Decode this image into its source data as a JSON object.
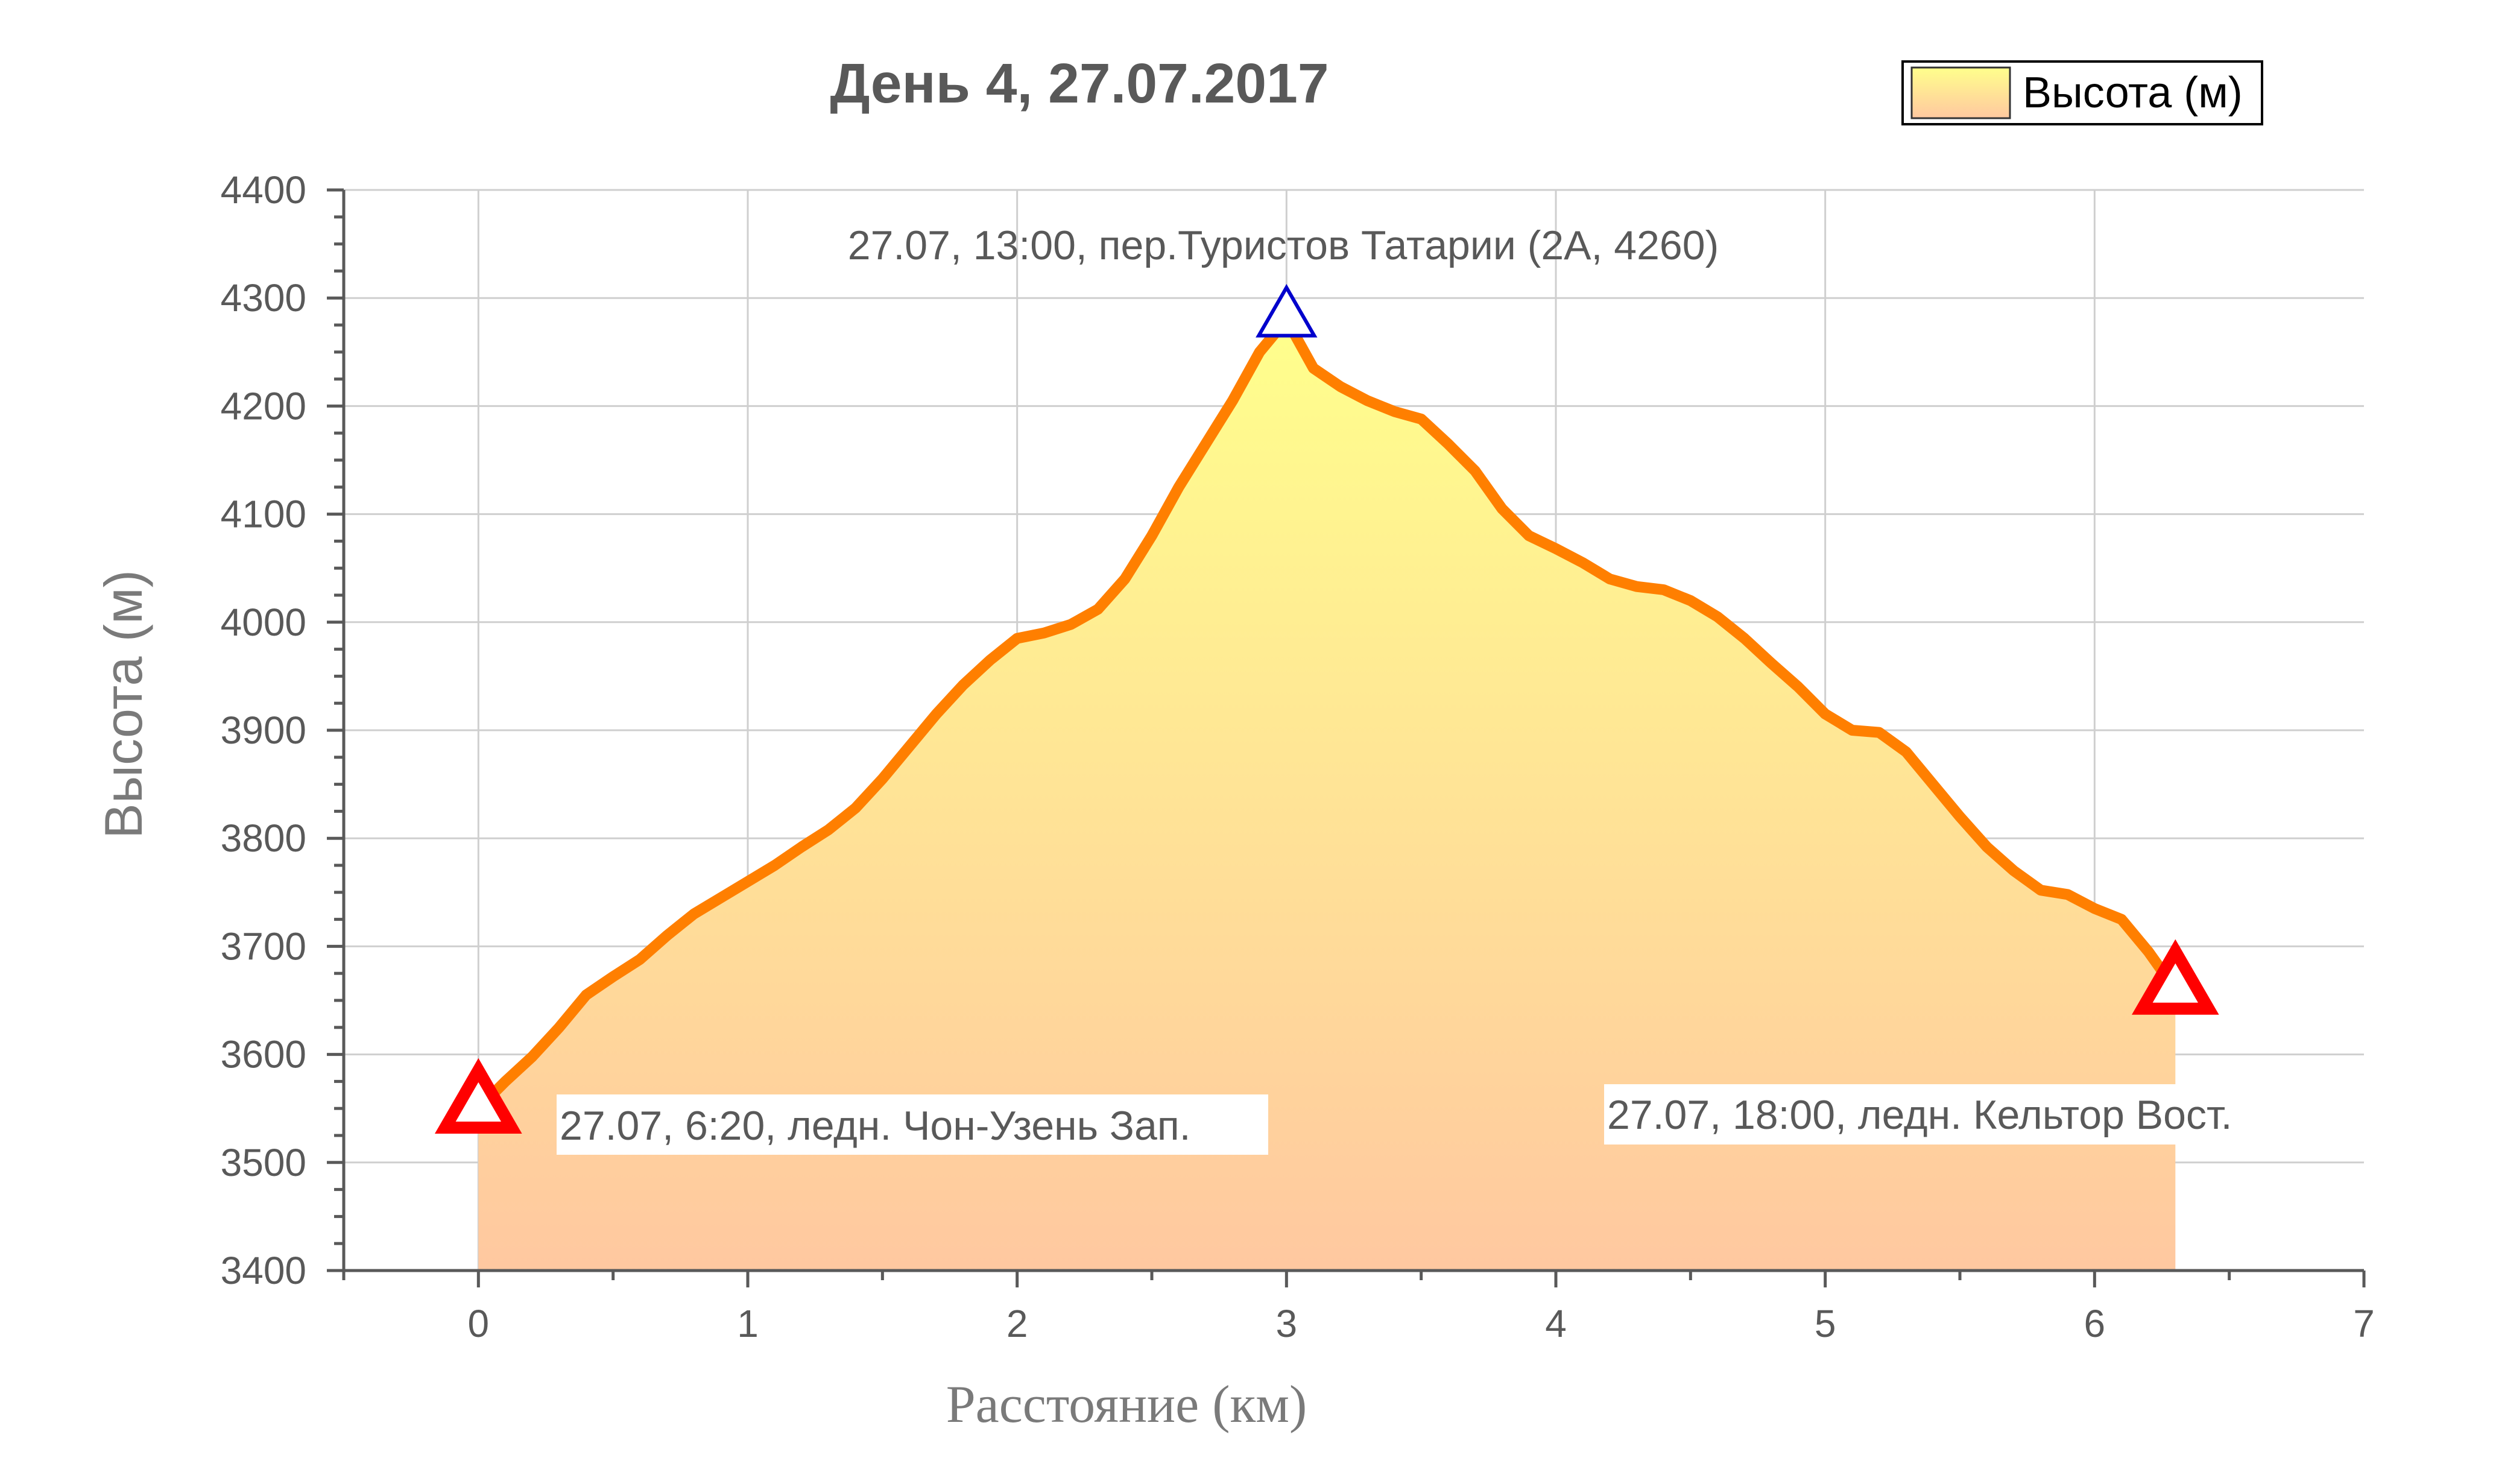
{
  "chart_data": {
    "type": "area",
    "title": "День 4, 27.07.2017",
    "xlabel": "Расстояние (км)",
    "ylabel": "Высота (м)",
    "xlim": [
      -0.5,
      7
    ],
    "ylim": [
      3400,
      4400
    ],
    "xticks": [
      0,
      1,
      2,
      3,
      4,
      5,
      6,
      7
    ],
    "yticks": [
      3400,
      3500,
      3600,
      3700,
      3800,
      3900,
      4000,
      4100,
      4200,
      4300,
      4400
    ],
    "grid": true,
    "legend": {
      "position": "top-right",
      "entries": [
        "Высота (м)"
      ]
    },
    "colors": {
      "line": "#ff7f00",
      "fill_top": "#ffff8c",
      "fill_bottom": "#ffc8a0",
      "start_marker": "#ff0000",
      "peak_marker": "#0000cc",
      "end_marker": "#ff0000"
    },
    "series": [
      {
        "name": "Высота (м)",
        "x": [
          0,
          0.1,
          0.2,
          0.3,
          0.4,
          0.5,
          0.6,
          0.7,
          0.8,
          0.9,
          1.0,
          1.1,
          1.2,
          1.3,
          1.4,
          1.5,
          1.6,
          1.7,
          1.8,
          1.9,
          2.0,
          2.1,
          2.2,
          2.3,
          2.4,
          2.5,
          2.6,
          2.7,
          2.8,
          2.9,
          3.0,
          3.1,
          3.2,
          3.3,
          3.4,
          3.5,
          3.6,
          3.7,
          3.8,
          3.9,
          4.0,
          4.1,
          4.2,
          4.3,
          4.4,
          4.5,
          4.6,
          4.7,
          4.8,
          4.9,
          5.0,
          5.1,
          5.2,
          5.3,
          5.4,
          5.5,
          5.6,
          5.7,
          5.8,
          5.9,
          6.0,
          6.1,
          6.2,
          6.3
        ],
        "values": [
          3550,
          3575,
          3598,
          3625,
          3655,
          3672,
          3688,
          3710,
          3730,
          3745,
          3760,
          3775,
          3792,
          3808,
          3828,
          3855,
          3885,
          3915,
          3942,
          3965,
          3985,
          3990,
          3998,
          4012,
          4040,
          4080,
          4125,
          4165,
          4205,
          4250,
          4280,
          4235,
          4218,
          4205,
          4195,
          4188,
          4165,
          4140,
          4105,
          4080,
          4068,
          4055,
          4040,
          4033,
          4030,
          4020,
          4005,
          3985,
          3962,
          3940,
          3915,
          3900,
          3898,
          3880,
          3850,
          3820,
          3792,
          3770,
          3752,
          3748,
          3735,
          3725,
          3695,
          3660
        ]
      }
    ],
    "annotations": [
      {
        "text": "27.07, 6:20, ледн. Чон-Узень Зап.",
        "x": 0,
        "y": 3550,
        "marker": "start"
      },
      {
        "text": "27.07, 13:00, пер.Туристов Татарии (2А, 4260)",
        "x": 3.0,
        "y": 4280,
        "marker": "peak"
      },
      {
        "text": "27.07, 18:00, ледн. Кельтор Вост.",
        "x": 6.3,
        "y": 3660,
        "marker": "end"
      }
    ]
  }
}
